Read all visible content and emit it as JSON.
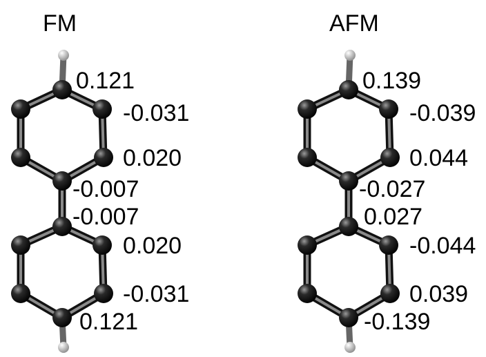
{
  "panels": [
    {
      "title": "FM",
      "labels": [
        "0.121",
        "-0.031",
        "0.020",
        "-0.007",
        "-0.007",
        "0.020",
        "-0.031",
        "0.121"
      ]
    },
    {
      "title": "AFM",
      "labels": [
        "0.139",
        "-0.039",
        "0.044",
        "-0.027",
        "0.027",
        "-0.044",
        "0.039",
        "-0.139"
      ]
    }
  ]
}
